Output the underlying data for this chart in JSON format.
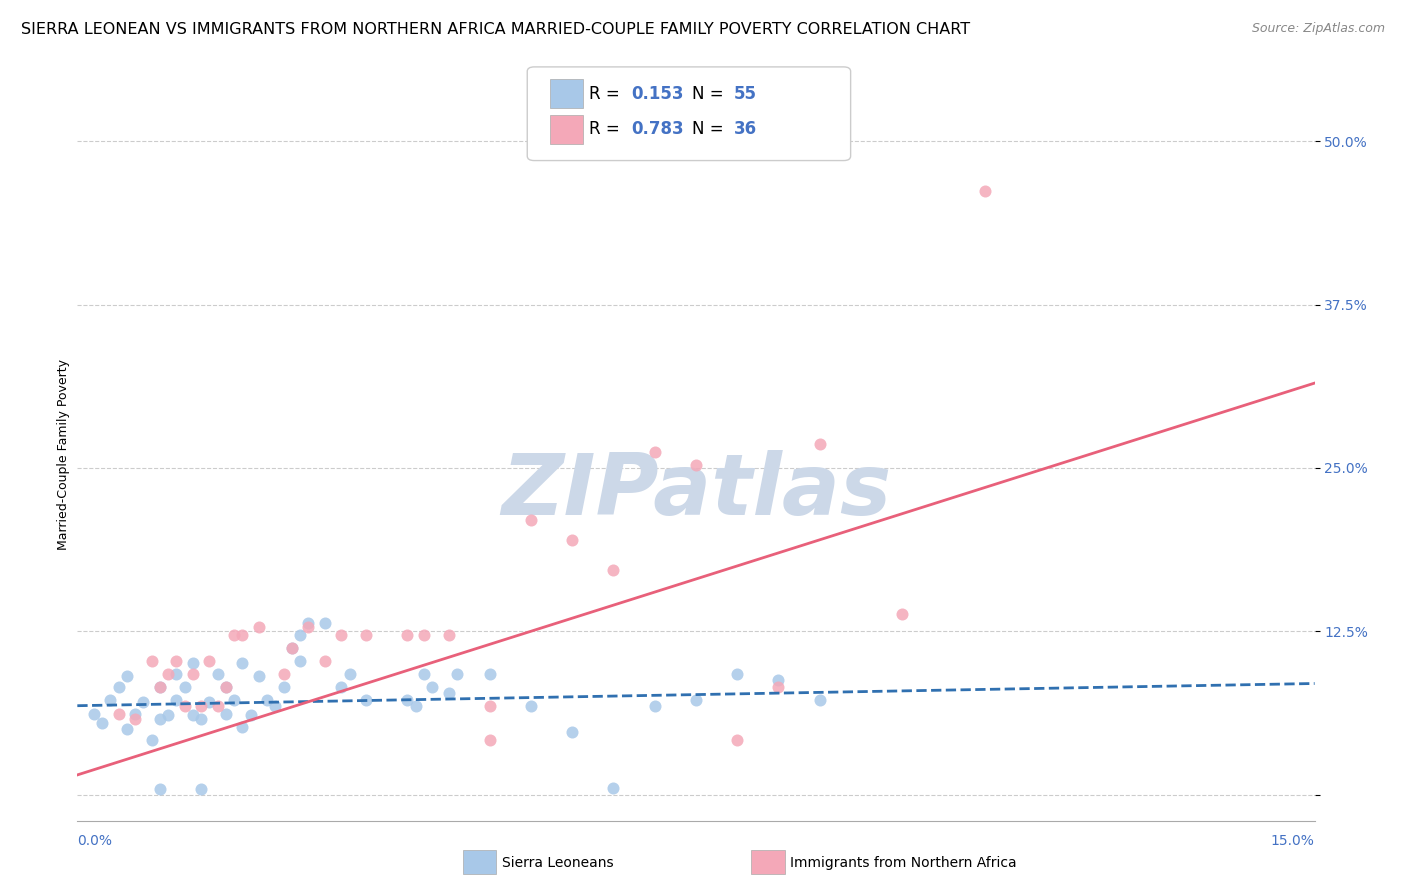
{
  "title": "SIERRA LEONEAN VS IMMIGRANTS FROM NORTHERN AFRICA MARRIED-COUPLE FAMILY POVERTY CORRELATION CHART",
  "source": "Source: ZipAtlas.com",
  "ylabel": "Married-Couple Family Poverty",
  "x_min": 0.0,
  "x_max": 0.15,
  "y_min": -0.02,
  "y_max": 0.54,
  "y_ticks": [
    0.0,
    0.125,
    0.25,
    0.375,
    0.5
  ],
  "y_tick_labels": [
    "",
    "12.5%",
    "25.0%",
    "37.5%",
    "50.0%"
  ],
  "legend_r1_label": "R = ",
  "legend_r1_val": "0.153",
  "legend_n1_label": "N = ",
  "legend_n1_val": "55",
  "legend_r2_label": "R = ",
  "legend_r2_val": "0.783",
  "legend_n2_label": "N = ",
  "legend_n2_val": "36",
  "blue_color": "#a8c8e8",
  "pink_color": "#f4a8b8",
  "blue_line_color": "#3070b0",
  "pink_line_color": "#e8607a",
  "tick_color": "#4472c4",
  "blue_scatter": [
    [
      0.002,
      0.062
    ],
    [
      0.003,
      0.055
    ],
    [
      0.004,
      0.072
    ],
    [
      0.005,
      0.082
    ],
    [
      0.006,
      0.05
    ],
    [
      0.006,
      0.091
    ],
    [
      0.007,
      0.062
    ],
    [
      0.008,
      0.071
    ],
    [
      0.009,
      0.042
    ],
    [
      0.01,
      0.058
    ],
    [
      0.01,
      0.082
    ],
    [
      0.011,
      0.061
    ],
    [
      0.012,
      0.092
    ],
    [
      0.012,
      0.072
    ],
    [
      0.013,
      0.082
    ],
    [
      0.014,
      0.061
    ],
    [
      0.014,
      0.101
    ],
    [
      0.015,
      0.058
    ],
    [
      0.016,
      0.071
    ],
    [
      0.017,
      0.092
    ],
    [
      0.018,
      0.062
    ],
    [
      0.018,
      0.082
    ],
    [
      0.019,
      0.072
    ],
    [
      0.02,
      0.101
    ],
    [
      0.02,
      0.052
    ],
    [
      0.021,
      0.061
    ],
    [
      0.022,
      0.091
    ],
    [
      0.023,
      0.072
    ],
    [
      0.024,
      0.068
    ],
    [
      0.025,
      0.082
    ],
    [
      0.026,
      0.112
    ],
    [
      0.027,
      0.102
    ],
    [
      0.027,
      0.122
    ],
    [
      0.028,
      0.131
    ],
    [
      0.03,
      0.131
    ],
    [
      0.032,
      0.082
    ],
    [
      0.033,
      0.092
    ],
    [
      0.035,
      0.072
    ],
    [
      0.04,
      0.072
    ],
    [
      0.041,
      0.068
    ],
    [
      0.042,
      0.092
    ],
    [
      0.043,
      0.082
    ],
    [
      0.045,
      0.078
    ],
    [
      0.046,
      0.092
    ],
    [
      0.05,
      0.092
    ],
    [
      0.055,
      0.068
    ],
    [
      0.06,
      0.048
    ],
    [
      0.065,
      0.005
    ],
    [
      0.07,
      0.068
    ],
    [
      0.075,
      0.072
    ],
    [
      0.08,
      0.092
    ],
    [
      0.085,
      0.088
    ],
    [
      0.09,
      0.072
    ],
    [
      0.01,
      0.004
    ],
    [
      0.015,
      0.004
    ]
  ],
  "pink_scatter": [
    [
      0.005,
      0.062
    ],
    [
      0.007,
      0.058
    ],
    [
      0.009,
      0.102
    ],
    [
      0.01,
      0.082
    ],
    [
      0.011,
      0.092
    ],
    [
      0.012,
      0.102
    ],
    [
      0.013,
      0.068
    ],
    [
      0.014,
      0.092
    ],
    [
      0.015,
      0.068
    ],
    [
      0.016,
      0.102
    ],
    [
      0.017,
      0.068
    ],
    [
      0.018,
      0.082
    ],
    [
      0.019,
      0.122
    ],
    [
      0.02,
      0.122
    ],
    [
      0.022,
      0.128
    ],
    [
      0.025,
      0.092
    ],
    [
      0.026,
      0.112
    ],
    [
      0.028,
      0.128
    ],
    [
      0.03,
      0.102
    ],
    [
      0.032,
      0.122
    ],
    [
      0.035,
      0.122
    ],
    [
      0.04,
      0.122
    ],
    [
      0.042,
      0.122
    ],
    [
      0.045,
      0.122
    ],
    [
      0.05,
      0.068
    ],
    [
      0.055,
      0.21
    ],
    [
      0.06,
      0.195
    ],
    [
      0.065,
      0.172
    ],
    [
      0.07,
      0.262
    ],
    [
      0.075,
      0.252
    ],
    [
      0.08,
      0.042
    ],
    [
      0.085,
      0.082
    ],
    [
      0.09,
      0.268
    ],
    [
      0.11,
      0.462
    ],
    [
      0.1,
      0.138
    ],
    [
      0.05,
      0.042
    ]
  ],
  "blue_trendline": [
    [
      0.0,
      0.068
    ],
    [
      0.15,
      0.085
    ]
  ],
  "pink_trendline": [
    [
      0.0,
      0.015
    ],
    [
      0.15,
      0.315
    ]
  ],
  "watermark": "ZIPatlas",
  "watermark_color": "#ccd8e8",
  "title_fontsize": 11.5,
  "source_fontsize": 9,
  "axis_label_fontsize": 9,
  "tick_fontsize": 10,
  "legend_fontsize": 12
}
